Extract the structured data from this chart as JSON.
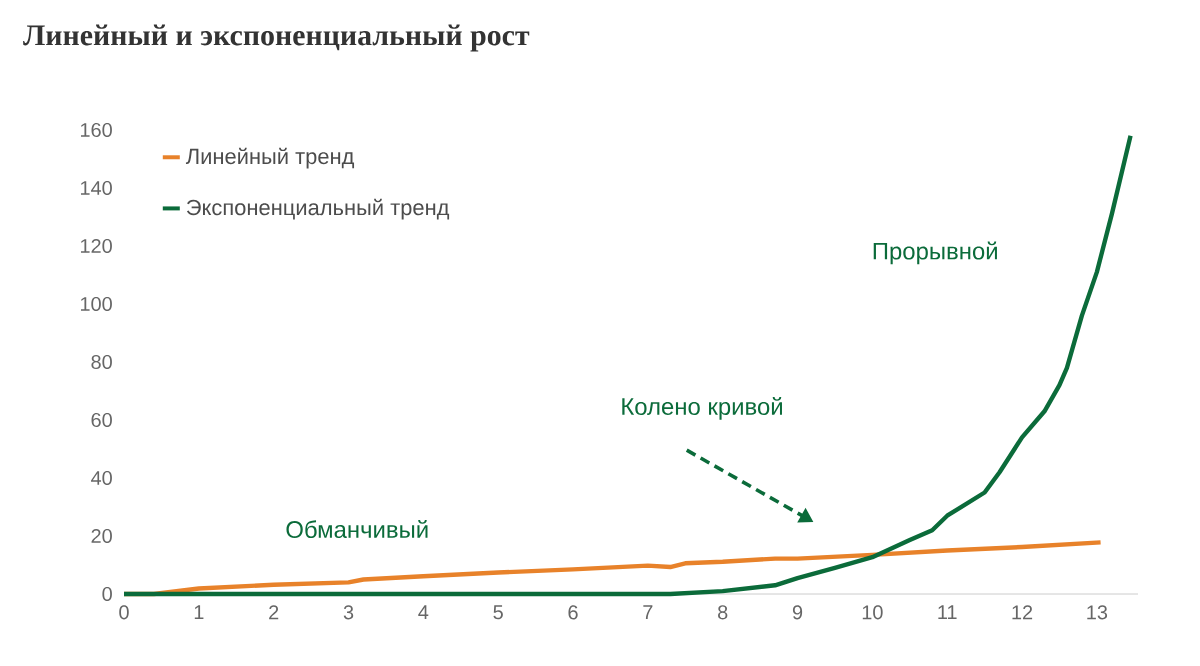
{
  "chart_data": {
    "type": "line",
    "title": "Линейный и экспоненциальный рост",
    "xlim": [
      0,
      13.55
    ],
    "ylim": [
      0,
      160
    ],
    "xticks": [
      0,
      1,
      2,
      3,
      4,
      5,
      6,
      7,
      8,
      9,
      10,
      11,
      12,
      13
    ],
    "yticks": [
      0,
      20,
      40,
      60,
      80,
      100,
      120,
      140,
      160
    ],
    "legend": "top left",
    "grid": false,
    "series": [
      {
        "name": "Линейный тренд",
        "color": "#e8822a",
        "x": [
          0,
          0.4,
          1,
          2,
          3,
          3.2,
          4,
          5,
          6,
          7,
          7.3,
          7.5,
          8,
          8.7,
          9,
          10,
          11,
          12,
          13.05
        ],
        "values": [
          0,
          0,
          1.9,
          3.2,
          4,
          5,
          6.1,
          7.4,
          8.5,
          9.8,
          9.3,
          10.6,
          11.1,
          12.2,
          12.2,
          13.5,
          15,
          16.2,
          17.8
        ]
      },
      {
        "name": "Экспоненциальный тренд",
        "color": "#0b6b3a",
        "x": [
          0,
          7.3,
          8,
          8.7,
          9,
          9.5,
          10,
          10.5,
          10.8,
          11,
          11.5,
          11.7,
          12,
          12.3,
          12.5,
          12.6,
          12.8,
          13,
          13.2,
          13.45
        ],
        "values": [
          0,
          0,
          1,
          3,
          5.5,
          9,
          12.7,
          18.6,
          22,
          27,
          35,
          42,
          54,
          63,
          72,
          78,
          96,
          111,
          131,
          158
        ]
      }
    ],
    "annotations": [
      "Прорывной",
      "Колено кривой",
      "Обманчивый"
    ]
  }
}
